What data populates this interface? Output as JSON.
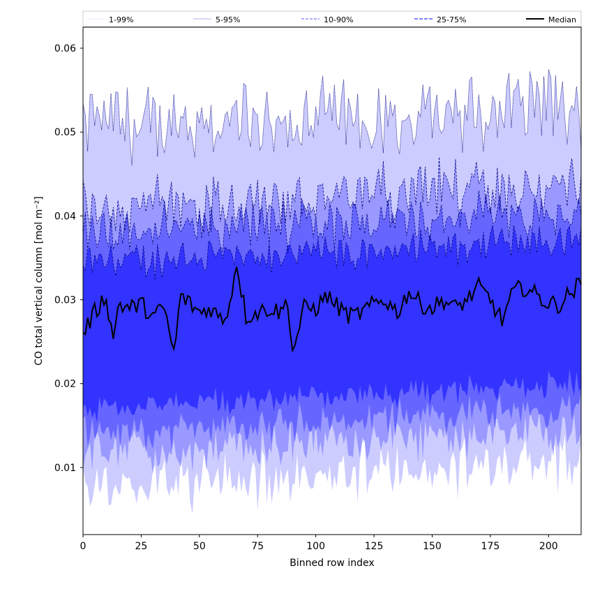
{
  "chart_data": {
    "type": "area",
    "xlabel": "Binned row index",
    "ylabel": "CO total vertical column [mol m⁻²]",
    "xlim": [
      0,
      214
    ],
    "ylim": [
      0.002,
      0.0625
    ],
    "xticks": [
      0,
      25,
      50,
      75,
      100,
      125,
      150,
      175,
      200
    ],
    "yticks": [
      0.01,
      0.02,
      0.03,
      0.04,
      0.05,
      0.06
    ],
    "ytick_labels": [
      "0.01",
      "0.02",
      "0.03",
      "0.04",
      "0.05",
      "0.06"
    ],
    "n_bins": 215,
    "legend": {
      "placement": "top, horizontal above plot",
      "entries": [
        "1-99%",
        "5-95%",
        "10-90%",
        "25-75%",
        "Median"
      ]
    },
    "colors": {
      "band_1_99": "#ccccff",
      "band_5_95": "#9999ff",
      "band_10_90": "#6666ff",
      "band_25_75": "#3333ff",
      "edge": "#00007a",
      "median": "#000000"
    },
    "series": [
      {
        "name": "1-99%",
        "kind": "band",
        "lower": 0.0075,
        "upper": 0.0505
      },
      {
        "name": "5-95%",
        "kind": "band",
        "lower": 0.0115,
        "upper": 0.041
      },
      {
        "name": "10-90%",
        "kind": "band",
        "lower": 0.014,
        "upper": 0.038
      },
      {
        "name": "25-75%",
        "kind": "band",
        "lower": 0.017,
        "upper": 0.0345
      },
      {
        "name": "Median",
        "kind": "line",
        "x": [
          0,
          5,
          10,
          13,
          15,
          20,
          25,
          30,
          35,
          39,
          42,
          46,
          50,
          55,
          60,
          63,
          66,
          70,
          75,
          80,
          85,
          88,
          90,
          95,
          100,
          105,
          110,
          115,
          120,
          125,
          130,
          135,
          140,
          145,
          150,
          155,
          160,
          165,
          170,
          175,
          180,
          185,
          190,
          195,
          200,
          205,
          210,
          214
        ],
        "values": [
          0.026,
          0.0285,
          0.0305,
          0.025,
          0.0295,
          0.029,
          0.0295,
          0.028,
          0.029,
          0.0235,
          0.0305,
          0.0295,
          0.0285,
          0.029,
          0.0275,
          0.0295,
          0.0345,
          0.028,
          0.0285,
          0.029,
          0.0285,
          0.03,
          0.0237,
          0.029,
          0.029,
          0.0305,
          0.029,
          0.028,
          0.0285,
          0.0295,
          0.03,
          0.0285,
          0.031,
          0.0295,
          0.029,
          0.03,
          0.029,
          0.03,
          0.0315,
          0.03,
          0.0275,
          0.031,
          0.0315,
          0.0305,
          0.0295,
          0.0295,
          0.031,
          0.032
        ]
      }
    ]
  }
}
